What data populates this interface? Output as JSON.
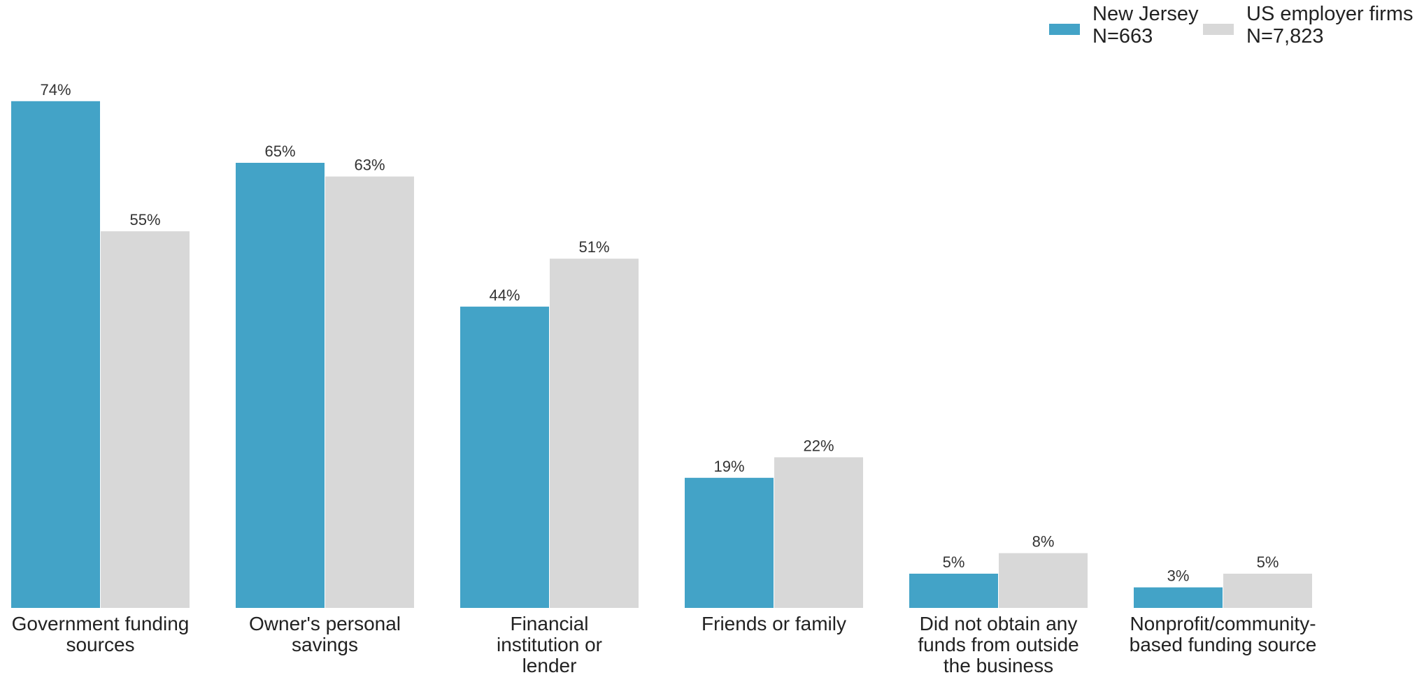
{
  "chart_data": {
    "type": "bar",
    "title": "",
    "xlabel": "",
    "ylabel": "",
    "ylim": [
      0,
      80
    ],
    "grid": false,
    "legend_placement": "top-right",
    "categories": [
      [
        "Government funding",
        "sources"
      ],
      [
        "Owner's personal",
        "savings"
      ],
      [
        "Financial",
        "institution or",
        "lender"
      ],
      [
        "Friends or family"
      ],
      [
        "Did not obtain any",
        "funds from outside",
        "the business"
      ],
      [
        "Nonprofit/community-",
        "based funding source"
      ]
    ],
    "series": [
      {
        "legend_line1": "New Jersey",
        "legend_line2": "N=663",
        "color": "#43a3c7",
        "values": [
          74,
          65,
          44,
          19,
          5,
          3
        ],
        "labels": [
          "74%",
          "65%",
          "44%",
          "19%",
          "5%",
          "3%"
        ]
      },
      {
        "legend_line1": "US employer firms",
        "legend_line2": "N=7,823",
        "color": "#d8d8d8",
        "values": [
          55,
          63,
          51,
          22,
          8,
          5
        ],
        "labels": [
          "55%",
          "63%",
          "51%",
          "22%",
          "8%",
          "5%"
        ]
      }
    ]
  }
}
